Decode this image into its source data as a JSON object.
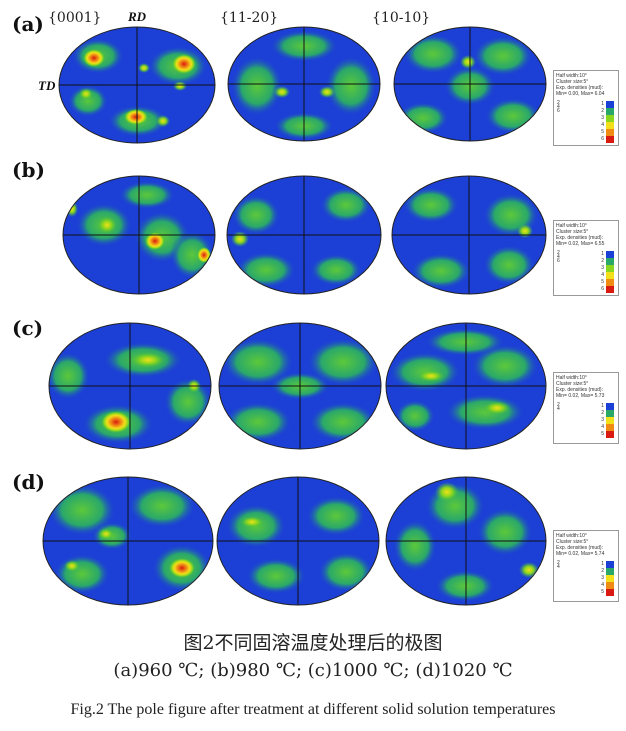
{
  "figure": {
    "row_labels": [
      "(a)",
      "(b)",
      "(c)",
      "(d)"
    ],
    "column_labels": [
      "{0001}",
      "{11-20}",
      "{10-10}"
    ],
    "axis_labels": {
      "rd": "RD",
      "td": "TD"
    },
    "colors": {
      "low": "#1c3fd6",
      "mid": "#35b84a",
      "green": "#8ad61e",
      "yellow": "#f2e01a",
      "orange": "#f08b14",
      "high": "#d81a10"
    },
    "legends": [
      {
        "lines": [
          "Half width:10°",
          "Cluster size:5°",
          "Exp. densities (mud):",
          "Min= 0.00, Max= 6.04"
        ],
        "contours": [
          "2",
          "4",
          "6"
        ],
        "scale": [
          "1",
          "2",
          "3",
          "4",
          "5",
          "6"
        ]
      },
      {
        "lines": [
          "Half width:10°",
          "Cluster size:5°",
          "Exp. densities (mud):",
          "Min= 0.02, Max= 6.55"
        ],
        "contours": [
          "2",
          "4",
          "6"
        ],
        "scale": [
          "1",
          "2",
          "3",
          "4",
          "5",
          "6"
        ]
      },
      {
        "lines": [
          "Half width:10°",
          "Cluster size:5°",
          "Exp. densities (mud):",
          "Min= 0.02, Max= 5.73"
        ],
        "contours": [
          "2",
          "4"
        ],
        "scale": [
          "1",
          "2",
          "3",
          "4",
          "5"
        ]
      },
      {
        "lines": [
          "Half width:10°",
          "Cluster size:5°",
          "Exp. densities (mud):",
          "Min= 0.02, Max= 5.74"
        ],
        "contours": [
          "2",
          "4"
        ],
        "scale": [
          "1",
          "2",
          "3",
          "4",
          "5"
        ]
      }
    ]
  },
  "caption": {
    "chinese_title": "图2不同固溶温度处理后的极图",
    "conditions": "(a)960 ℃; (b)980 ℃; (c)1000 ℃; (d)1020 ℃",
    "english_title": "Fig.2 The pole figure after treatment at different solid solution temperatures"
  }
}
